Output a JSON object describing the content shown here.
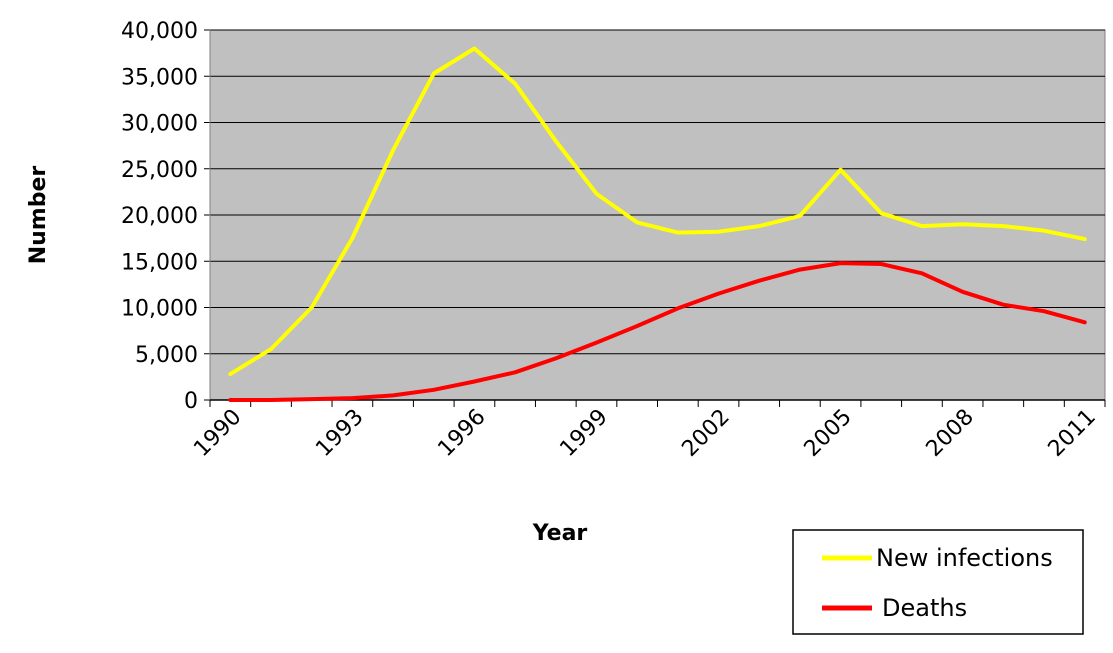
{
  "chart_data": {
    "type": "line",
    "title": "",
    "xlabel": "Year",
    "ylabel": "Number",
    "x": [
      1990,
      1991,
      1992,
      1993,
      1994,
      1995,
      1996,
      1997,
      1998,
      1999,
      2000,
      2001,
      2002,
      2003,
      2004,
      2005,
      2006,
      2007,
      2008,
      2009,
      2010,
      2011
    ],
    "x_tick_labels": [
      "1990",
      "1993",
      "1996",
      "1999",
      "2002",
      "2005",
      "2008",
      "2011"
    ],
    "y_tick_labels": [
      "0",
      "5,000",
      "10,000",
      "15,000",
      "20,000",
      "25,000",
      "30,000",
      "35,000",
      "40,000"
    ],
    "ylim": [
      0,
      40000
    ],
    "grid": "horizontal",
    "legend_position": "bottom-right",
    "plot_background": "#c0c0c0",
    "series": [
      {
        "name": "New infections",
        "color": "#ffff00",
        "values": [
          2800,
          5500,
          10000,
          17500,
          27000,
          35300,
          38000,
          34200,
          28000,
          22300,
          19200,
          18100,
          18200,
          18800,
          19900,
          24900,
          20200,
          18800,
          19000,
          18800,
          18300,
          17400
        ]
      },
      {
        "name": "Deaths",
        "color": "#ff0000",
        "values": [
          0,
          0,
          100,
          200,
          500,
          1100,
          2000,
          3000,
          4500,
          6200,
          8000,
          9900,
          11500,
          12900,
          14100,
          14800,
          14700,
          13700,
          11700,
          10300,
          9600,
          8400
        ]
      }
    ]
  }
}
